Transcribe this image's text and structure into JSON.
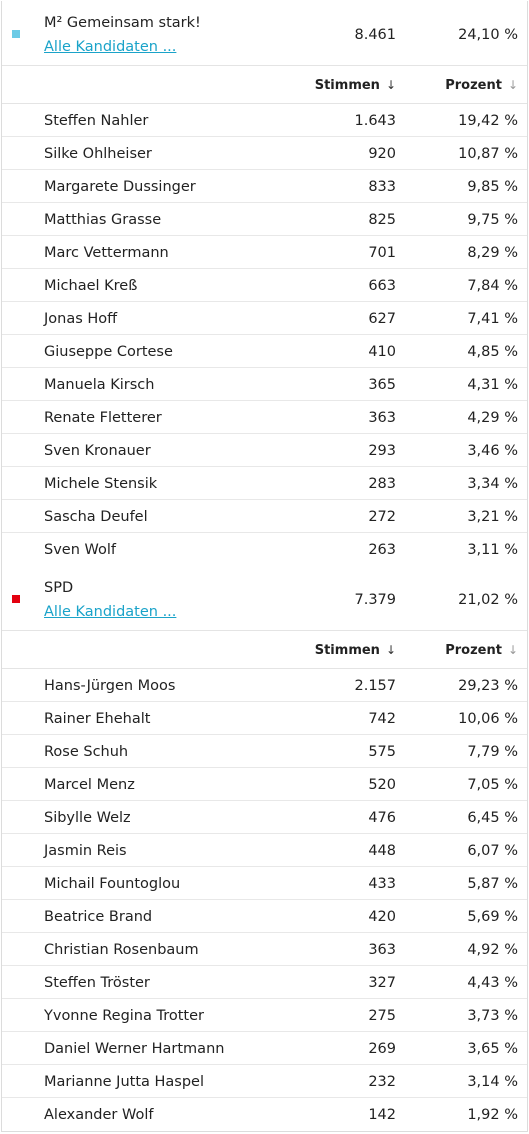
{
  "columns": {
    "votes_label": "Stimmen",
    "percent_label": "Prozent",
    "sort_icon": "arrow-down-icon",
    "sort_glyph": "↓"
  },
  "colors": {
    "link": "#1aa3c9"
  },
  "parties": [
    {
      "name": "M² Gemeinsam stark!",
      "link_label": "Alle Kandidaten ...",
      "votes": "8.461",
      "percent": "24,10 %",
      "color": "#6ccbe6",
      "candidates": [
        {
          "name": "Steffen Nahler",
          "votes": "1.643",
          "percent": "19,42 %"
        },
        {
          "name": "Silke Ohlheiser",
          "votes": "920",
          "percent": "10,87 %"
        },
        {
          "name": "Margarete Dussinger",
          "votes": "833",
          "percent": "9,85 %"
        },
        {
          "name": "Matthias Grasse",
          "votes": "825",
          "percent": "9,75 %"
        },
        {
          "name": "Marc Vettermann",
          "votes": "701",
          "percent": "8,29 %"
        },
        {
          "name": "Michael Kreß",
          "votes": "663",
          "percent": "7,84 %"
        },
        {
          "name": "Jonas Hoff",
          "votes": "627",
          "percent": "7,41 %"
        },
        {
          "name": "Giuseppe Cortese",
          "votes": "410",
          "percent": "4,85 %"
        },
        {
          "name": "Manuela Kirsch",
          "votes": "365",
          "percent": "4,31 %"
        },
        {
          "name": "Renate Fletterer",
          "votes": "363",
          "percent": "4,29 %"
        },
        {
          "name": "Sven Kronauer",
          "votes": "293",
          "percent": "3,46 %"
        },
        {
          "name": "Michele Stensik",
          "votes": "283",
          "percent": "3,34 %"
        },
        {
          "name": "Sascha Deufel",
          "votes": "272",
          "percent": "3,21 %"
        },
        {
          "name": "Sven Wolf",
          "votes": "263",
          "percent": "3,11 %"
        }
      ]
    },
    {
      "name": "SPD",
      "link_label": "Alle Kandidaten ...",
      "votes": "7.379",
      "percent": "21,02 %",
      "color": "#e3000f",
      "candidates": [
        {
          "name": "Hans-Jürgen Moos",
          "votes": "2.157",
          "percent": "29,23 %"
        },
        {
          "name": "Rainer Ehehalt",
          "votes": "742",
          "percent": "10,06 %"
        },
        {
          "name": "Rose Schuh",
          "votes": "575",
          "percent": "7,79 %"
        },
        {
          "name": "Marcel Menz",
          "votes": "520",
          "percent": "7,05 %"
        },
        {
          "name": "Sibylle Welz",
          "votes": "476",
          "percent": "6,45 %"
        },
        {
          "name": "Jasmin Reis",
          "votes": "448",
          "percent": "6,07 %"
        },
        {
          "name": "Michail Fountoglou",
          "votes": "433",
          "percent": "5,87 %"
        },
        {
          "name": "Beatrice Brand",
          "votes": "420",
          "percent": "5,69 %"
        },
        {
          "name": "Christian Rosenbaum",
          "votes": "363",
          "percent": "4,92 %"
        },
        {
          "name": "Steffen Tröster",
          "votes": "327",
          "percent": "4,43 %"
        },
        {
          "name": "Yvonne Regina Trotter",
          "votes": "275",
          "percent": "3,73 %"
        },
        {
          "name": "Daniel Werner Hartmann",
          "votes": "269",
          "percent": "3,65 %"
        },
        {
          "name": "Marianne Jutta Haspel",
          "votes": "232",
          "percent": "3,14 %"
        },
        {
          "name": "Alexander Wolf",
          "votes": "142",
          "percent": "1,92 %"
        }
      ]
    }
  ]
}
